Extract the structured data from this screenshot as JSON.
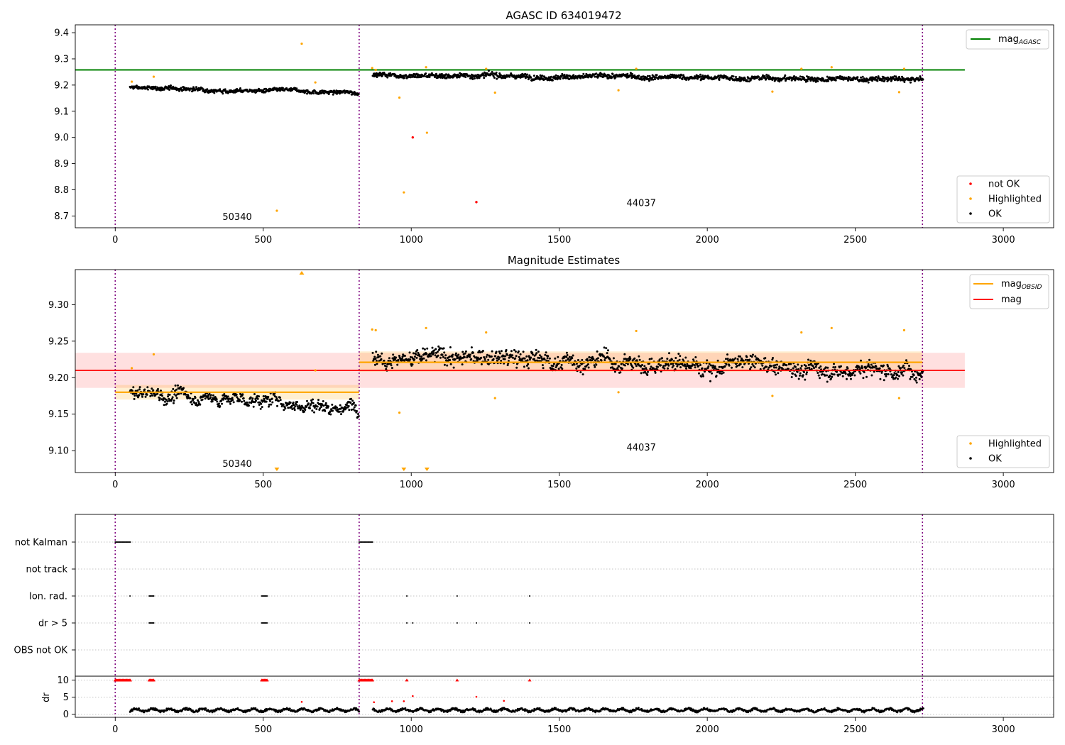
{
  "chart_data": [
    {
      "type": "scatter",
      "title": "AGASC ID 634019472",
      "xlim": [
        -135,
        3170
      ],
      "ylim": [
        8.655,
        9.43
      ],
      "xticks": [
        0,
        500,
        1000,
        1500,
        2000,
        2500,
        3000
      ],
      "yticks": [
        8.7,
        8.8,
        8.9,
        9.0,
        9.1,
        9.2,
        9.3,
        9.4
      ],
      "vlines": [
        0,
        824,
        2727
      ],
      "obsid_labels": [
        {
          "text": "50340",
          "x": 412,
          "y": 8.685
        },
        {
          "text": "44037",
          "x": 1777,
          "y": 8.738
        }
      ],
      "mag_agasc": {
        "name": "mag_AGASC",
        "value": 9.258,
        "x_range": [
          -135,
          2870
        ],
        "color": "#008000"
      },
      "legend_lines": [
        {
          "name": "mag",
          "sub": "AGASC",
          "color": "#008000"
        }
      ],
      "legend_points": [
        {
          "name": "not OK",
          "color": "#ff0000"
        },
        {
          "name": "Highlighted",
          "color": "#ffa500"
        },
        {
          "name": "OK",
          "color": "#000000"
        }
      ],
      "segments": [
        {
          "x_range": [
            50,
            824
          ],
          "start": 9.19,
          "end": 9.17,
          "noise": 0.009
        },
        {
          "x_range": [
            870,
            2730
          ],
          "start": 9.24,
          "end": 9.22,
          "noise": 0.012
        }
      ],
      "highlighted": [
        [
          56,
          9.213
        ],
        [
          130,
          9.232
        ],
        [
          546,
          8.72
        ],
        [
          630,
          9.358
        ],
        [
          676,
          9.21
        ],
        [
          868,
          9.265
        ],
        [
          880,
          9.258
        ],
        [
          960,
          9.152
        ],
        [
          975,
          8.79
        ],
        [
          1050,
          9.268
        ],
        [
          1053,
          9.018
        ],
        [
          1253,
          9.262
        ],
        [
          1283,
          9.171
        ],
        [
          1700,
          9.18
        ],
        [
          1760,
          9.262
        ],
        [
          2220,
          9.175
        ],
        [
          2318,
          9.262
        ],
        [
          2420,
          9.268
        ],
        [
          2648,
          9.173
        ],
        [
          2665,
          9.262
        ]
      ],
      "not_ok": [
        [
          1005,
          9.0
        ],
        [
          1220,
          8.753
        ]
      ]
    },
    {
      "type": "scatter",
      "title": "Magnitude Estimates",
      "xlim": [
        -135,
        3170
      ],
      "ylim": [
        9.07,
        9.348
      ],
      "xticks": [
        0,
        500,
        1000,
        1500,
        2000,
        2500,
        3000
      ],
      "yticks": [
        9.1,
        9.15,
        9.2,
        9.25,
        9.3
      ],
      "ytick_labels": [
        "9.10",
        "9.15",
        "9.20",
        "9.25",
        "9.30"
      ],
      "vlines": [
        0,
        824,
        2727
      ],
      "obsid_labels": [
        {
          "text": "50340",
          "x": 412,
          "y": 9.078
        },
        {
          "text": "44037",
          "x": 1777,
          "y": 9.1
        }
      ],
      "mag": {
        "value": 9.21,
        "band": [
          9.186,
          9.234
        ],
        "x_range": [
          -135,
          2870
        ],
        "color": "#ff0000"
      },
      "mag_obsid": [
        {
          "x_range": [
            0,
            824
          ],
          "value": 9.18,
          "band": [
            9.17,
            9.19
          ]
        },
        {
          "x_range": [
            824,
            2727
          ],
          "value": 9.221,
          "band": [
            9.208,
            9.236
          ]
        }
      ],
      "legend_lines": [
        {
          "name": "mag",
          "sub": "OBSID",
          "color": "#ffa500"
        },
        {
          "name": "mag",
          "sub": "",
          "color": "#ff0000"
        }
      ],
      "legend_points": [
        {
          "name": "Highlighted",
          "color": "#ffa500"
        },
        {
          "name": "OK",
          "color": "#000000"
        }
      ],
      "highlighted": [
        [
          56,
          9.213
        ],
        [
          130,
          9.232
        ],
        [
          676,
          9.21
        ],
        [
          868,
          9.266
        ],
        [
          880,
          9.265
        ],
        [
          960,
          9.152
        ],
        [
          1050,
          9.268
        ],
        [
          1253,
          9.262
        ],
        [
          1283,
          9.172
        ],
        [
          1700,
          9.18
        ],
        [
          1760,
          9.264
        ],
        [
          2220,
          9.175
        ],
        [
          2318,
          9.262
        ],
        [
          2420,
          9.268
        ],
        [
          2648,
          9.172
        ],
        [
          2665,
          9.265
        ]
      ],
      "markers_top": [
        630
      ],
      "markers_bottom": [
        546,
        975,
        1053
      ]
    },
    {
      "type": "scatter",
      "xlim": [
        -135,
        3170
      ],
      "xticks": [
        0,
        500,
        1000,
        1500,
        2000,
        2500,
        3000
      ],
      "vlines": [
        0,
        824,
        2727
      ],
      "flag_rows": [
        "not Kalman",
        "not track",
        "Ion. rad.",
        "dr > 5",
        "OBS not OK"
      ],
      "flags": {
        "not Kalman": [
          [
            0,
            52
          ],
          [
            824,
            870
          ]
        ],
        "not track": [],
        "Ion. rad.": [
          [
            50,
            50
          ],
          [
            115,
            130
          ],
          [
            495,
            515
          ],
          [
            985,
            985
          ],
          [
            1155,
            1155
          ],
          [
            1400,
            1400
          ]
        ],
        "dr > 5": [
          [
            115,
            130
          ],
          [
            495,
            515
          ],
          [
            985,
            985
          ],
          [
            1005,
            1005
          ],
          [
            1155,
            1155
          ],
          [
            1220,
            1220
          ],
          [
            1400,
            1400
          ]
        ],
        "OBS not OK": []
      },
      "dr": {
        "ylabel": "dr",
        "ylim": [
          -0.5,
          10.5
        ],
        "yticks": [
          0,
          5,
          10
        ],
        "clip_ranges": [
          [
            0,
            52
          ],
          [
            115,
            130
          ],
          [
            495,
            515
          ],
          [
            824,
            870
          ]
        ],
        "clip_points": [
          985,
          1155,
          1400
        ],
        "outliers": [
          [
            630,
            3.6
          ],
          [
            874,
            3.5
          ],
          [
            935,
            3.8
          ],
          [
            975,
            3.8
          ],
          [
            1005,
            5.3
          ],
          [
            1220,
            5.1
          ],
          [
            1313,
            3.9
          ]
        ]
      }
    }
  ]
}
